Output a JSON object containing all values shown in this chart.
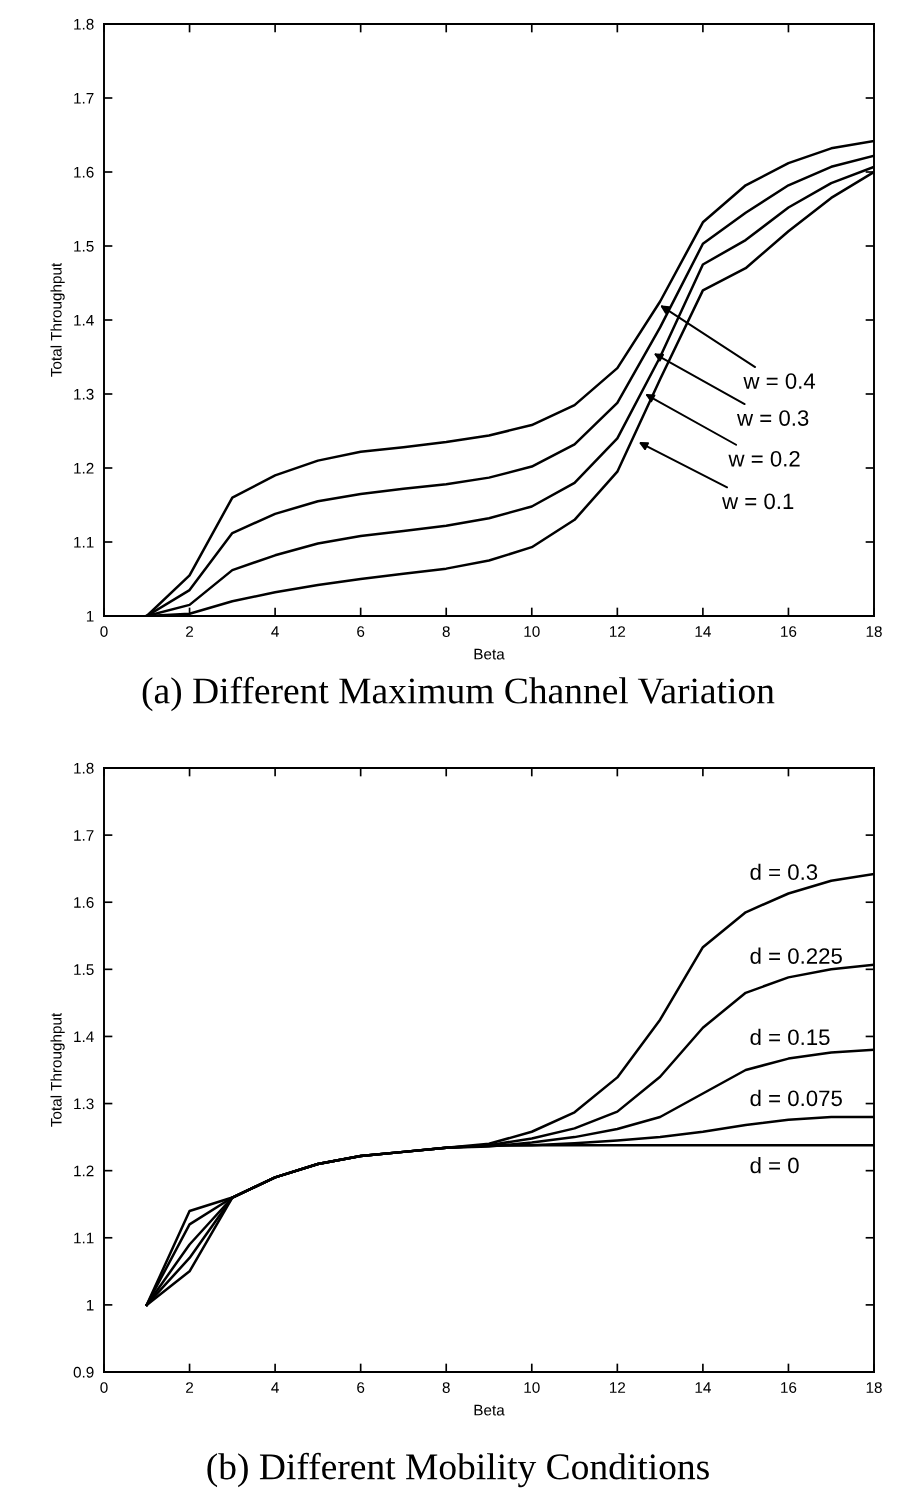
{
  "chart_data": [
    {
      "type": "line",
      "title": "(a) Different Maximum Channel Variation",
      "xlabel": "Beta",
      "ylabel": "Total Throughput",
      "x": [
        1,
        2,
        3,
        4,
        5,
        6,
        7,
        8,
        9,
        10,
        11,
        12,
        13,
        14,
        15,
        16,
        17,
        18
      ],
      "series": [
        {
          "color": "#000000",
          "values": [
            1.0,
            1.055,
            1.16,
            1.19,
            1.21,
            1.222,
            1.228,
            1.235,
            1.244,
            1.258,
            1.285,
            1.335,
            1.425,
            1.532,
            1.582,
            1.612,
            1.632,
            1.642
          ]
        },
        {
          "color": "#000000",
          "values": [
            1.0,
            1.035,
            1.112,
            1.138,
            1.155,
            1.165,
            1.172,
            1.178,
            1.187,
            1.202,
            1.232,
            1.288,
            1.39,
            1.503,
            1.545,
            1.582,
            1.607,
            1.622
          ]
        },
        {
          "color": "#000000",
          "values": [
            1.0,
            1.015,
            1.062,
            1.082,
            1.098,
            1.108,
            1.115,
            1.122,
            1.132,
            1.148,
            1.18,
            1.24,
            1.35,
            1.475,
            1.508,
            1.552,
            1.585,
            1.607
          ]
        },
        {
          "color": "#000000",
          "values": [
            1.0,
            1.003,
            1.02,
            1.032,
            1.042,
            1.05,
            1.057,
            1.064,
            1.075,
            1.093,
            1.13,
            1.195,
            1.32,
            1.44,
            1.47,
            1.52,
            1.565,
            1.6
          ]
        }
      ],
      "annotations": [
        {
          "text": "w = 0.4",
          "x": 13.0,
          "y": 1.42
        },
        {
          "text": "w = 0.3",
          "x": 12.85,
          "y": 1.355
        },
        {
          "text": "w = 0.2",
          "x": 12.65,
          "y": 1.3
        },
        {
          "text": "w = 0.1",
          "x": 12.5,
          "y": 1.235
        }
      ],
      "xlim": [
        0,
        18
      ],
      "ylim": [
        1,
        1.8
      ],
      "xticks": [
        0,
        2,
        4,
        6,
        8,
        10,
        12,
        14,
        16,
        18
      ],
      "yticks": [
        1,
        1.1,
        1.2,
        1.3,
        1.4,
        1.5,
        1.6,
        1.7,
        1.8
      ],
      "grid": false,
      "marker": "none",
      "line_style": "solid"
    },
    {
      "type": "line",
      "title": "(b) Different Mobility Conditions",
      "xlabel": "Beta",
      "ylabel": "Total Throughput",
      "x": [
        1,
        2,
        3,
        4,
        5,
        6,
        7,
        8,
        9,
        10,
        11,
        12,
        13,
        14,
        15,
        16,
        17,
        18
      ],
      "series": [
        {
          "name": "d = 0.3",
          "color": "#000000",
          "values": [
            1.0,
            1.05,
            1.16,
            1.19,
            1.21,
            1.222,
            1.228,
            1.234,
            1.24,
            1.258,
            1.287,
            1.339,
            1.425,
            1.533,
            1.585,
            1.613,
            1.632,
            1.642
          ]
        },
        {
          "name": "d = 0.225",
          "color": "#000000",
          "values": [
            1.0,
            1.07,
            1.16,
            1.19,
            1.21,
            1.222,
            1.228,
            1.234,
            1.238,
            1.248,
            1.263,
            1.288,
            1.34,
            1.413,
            1.465,
            1.488,
            1.5,
            1.507
          ]
        },
        {
          "name": "d = 0.15",
          "color": "#000000",
          "values": [
            1.0,
            1.09,
            1.16,
            1.19,
            1.21,
            1.222,
            1.228,
            1.234,
            1.236,
            1.242,
            1.25,
            1.262,
            1.28,
            1.315,
            1.35,
            1.367,
            1.376,
            1.38
          ]
        },
        {
          "name": "d = 0.075",
          "color": "#000000",
          "values": [
            1.0,
            1.12,
            1.16,
            1.19,
            1.21,
            1.222,
            1.228,
            1.234,
            1.237,
            1.238,
            1.241,
            1.245,
            1.25,
            1.258,
            1.268,
            1.276,
            1.28,
            1.28
          ]
        },
        {
          "name": "d = 0",
          "color": "#000000",
          "values": [
            1.0,
            1.14,
            1.16,
            1.19,
            1.21,
            1.222,
            1.228,
            1.234,
            1.238,
            1.238,
            1.238,
            1.238,
            1.238,
            1.238,
            1.238,
            1.238,
            1.238,
            1.238
          ]
        }
      ],
      "xlim": [
        0,
        18
      ],
      "ylim": [
        0.9,
        1.8
      ],
      "xticks": [
        0,
        2,
        4,
        6,
        8,
        10,
        12,
        14,
        16,
        18
      ],
      "yticks": [
        0.9,
        1,
        1.1,
        1.2,
        1.3,
        1.4,
        1.5,
        1.6,
        1.7,
        1.8
      ],
      "grid": false,
      "legend": "right",
      "marker": "none",
      "line_style": "solid"
    }
  ]
}
